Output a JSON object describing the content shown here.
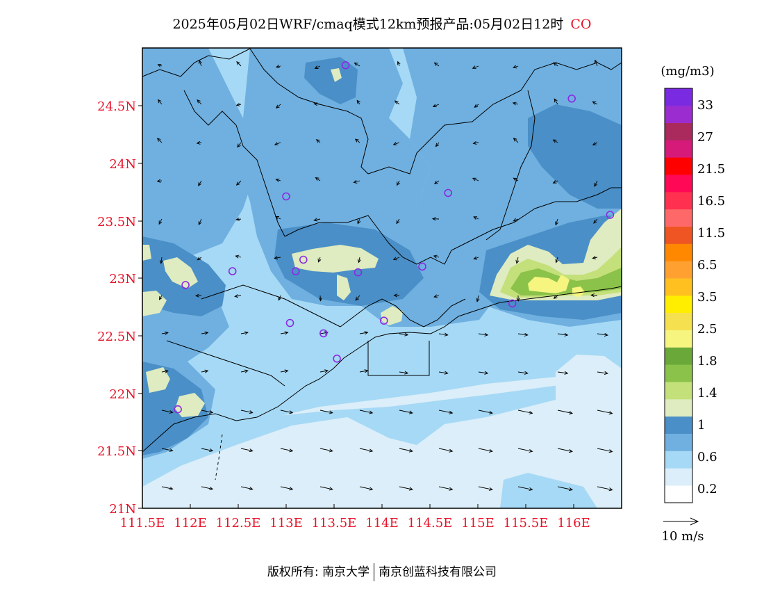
{
  "title": {
    "text": "2025年05月02日WRF/cmaq模式12km预报产品:05月02日12时",
    "species": "CO"
  },
  "map": {
    "lon_ticks": [
      "111.5E",
      "112E",
      "112.5E",
      "113E",
      "113.5E",
      "114E",
      "114.5E",
      "115E",
      "115.5E",
      "116E"
    ],
    "lat_ticks": [
      "24.5N",
      "24N",
      "23.5N",
      "23N",
      "22.5N",
      "22N",
      "21.5N",
      "21N"
    ],
    "lon_range": [
      111.5,
      116.5
    ],
    "lat_range": [
      21.0,
      25.0
    ],
    "colors": {
      "ocean_lowest": "#dbeef9",
      "level_0_2": "#a6d9f5",
      "level_0_6": "#6fb0e0",
      "level_0_8": "#4a8fc7",
      "level_1": "#dfebc0",
      "level_1_4": "#c3e07a",
      "level_1_8": "#8bc24a",
      "level_2_5": "#f5f580",
      "station": "#8a2be2",
      "border": "#000000"
    },
    "stations": [
      {
        "lon": 113.62,
        "lat": 24.85
      },
      {
        "lon": 115.98,
        "lat": 24.56
      },
      {
        "lon": 113.0,
        "lat": 23.71
      },
      {
        "lon": 114.69,
        "lat": 23.74
      },
      {
        "lon": 116.38,
        "lat": 23.55
      },
      {
        "lon": 113.18,
        "lat": 23.16
      },
      {
        "lon": 112.44,
        "lat": 23.06
      },
      {
        "lon": 113.1,
        "lat": 23.06
      },
      {
        "lon": 113.75,
        "lat": 23.05
      },
      {
        "lon": 114.42,
        "lat": 23.1
      },
      {
        "lon": 111.95,
        "lat": 22.94
      },
      {
        "lon": 115.36,
        "lat": 22.78
      },
      {
        "lon": 113.04,
        "lat": 22.61
      },
      {
        "lon": 113.39,
        "lat": 22.52
      },
      {
        "lon": 114.02,
        "lat": 22.63
      },
      {
        "lon": 113.53,
        "lat": 22.3
      },
      {
        "lon": 111.87,
        "lat": 21.86
      }
    ]
  },
  "legend": {
    "unit": "(mg/m3)",
    "swatches": [
      "#ffffff",
      "#dbeef9",
      "#a6d9f5",
      "#6fb0e0",
      "#4a8fc7",
      "#dfebc0",
      "#c3e07a",
      "#8bc24a",
      "#6aa83a",
      "#f5f580",
      "#f5e050",
      "#ffee00",
      "#ffc020",
      "#ffa030",
      "#ff8800",
      "#ee5522",
      "#ff6868",
      "#ff3050",
      "#ff0855",
      "#ff0000",
      "#d61a7a",
      "#aa2a5e",
      "#9b2ccf",
      "#7a2be2"
    ],
    "labels": [
      "0.2",
      "0.6",
      "1",
      "1.4",
      "1.8",
      "2.5",
      "3.5",
      "6.5",
      "11.5",
      "16.5",
      "21.5",
      "27",
      "33"
    ],
    "wind_ref": "10 m/s"
  },
  "footer": {
    "left": "版权所有: 南京大学",
    "right": "南京创蓝科技有限公司"
  }
}
